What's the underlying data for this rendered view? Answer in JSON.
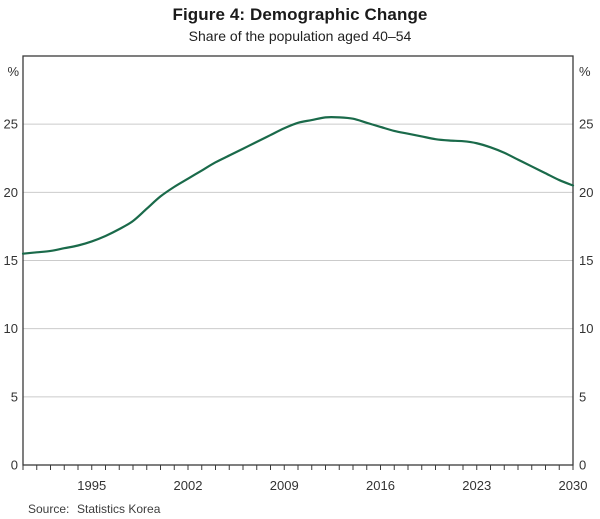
{
  "header": {
    "title": "Figure 4: Demographic Change",
    "subtitle": "Share of the population aged 40–54"
  },
  "footer": {
    "source_label": "Source:",
    "source_value": "Statistics Korea"
  },
  "chart_data": {
    "type": "line",
    "title": "Figure 4: Demographic Change",
    "subtitle": "Share of the population aged 40–54",
    "xlabel": "",
    "ylabel": "%",
    "ylabel_right": "%",
    "xlim": [
      1990,
      2030
    ],
    "ylim": [
      0,
      30
    ],
    "grid": true,
    "legend_position": "none",
    "y_gridlines": [
      5,
      10,
      15,
      20,
      25
    ],
    "y_axis_labels": [
      0,
      5,
      10,
      15,
      20,
      25
    ],
    "x_labeled_ticks": [
      1995,
      2002,
      2009,
      2016,
      2023,
      2030
    ],
    "x_minor_tick_step_years": 1,
    "x": [
      1990,
      1991,
      1992,
      1993,
      1994,
      1995,
      1996,
      1997,
      1998,
      1999,
      2000,
      2001,
      2002,
      2003,
      2004,
      2005,
      2006,
      2007,
      2008,
      2009,
      2010,
      2011,
      2012,
      2013,
      2014,
      2015,
      2016,
      2017,
      2018,
      2019,
      2020,
      2021,
      2022,
      2023,
      2024,
      2025,
      2026,
      2027,
      2028,
      2029,
      2030
    ],
    "series": [
      {
        "name": "Share of the population aged 40–54 (%)",
        "values": [
          15.5,
          15.6,
          15.7,
          15.9,
          16.1,
          16.4,
          16.8,
          17.3,
          17.9,
          18.8,
          19.7,
          20.4,
          21.0,
          21.6,
          22.2,
          22.7,
          23.2,
          23.7,
          24.2,
          24.7,
          25.1,
          25.3,
          25.5,
          25.5,
          25.4,
          25.1,
          24.8,
          24.5,
          24.3,
          24.1,
          23.9,
          23.8,
          23.75,
          23.6,
          23.3,
          22.9,
          22.4,
          21.9,
          21.4,
          20.9,
          20.5
        ],
        "color": "#1a6a4a"
      }
    ],
    "colors": {
      "line": "#1a6a4a",
      "axis": "#3a3a3a",
      "grid": "#cbcbcb",
      "text": "#333333"
    },
    "source_label": "Source:",
    "source": "Statistics Korea"
  }
}
